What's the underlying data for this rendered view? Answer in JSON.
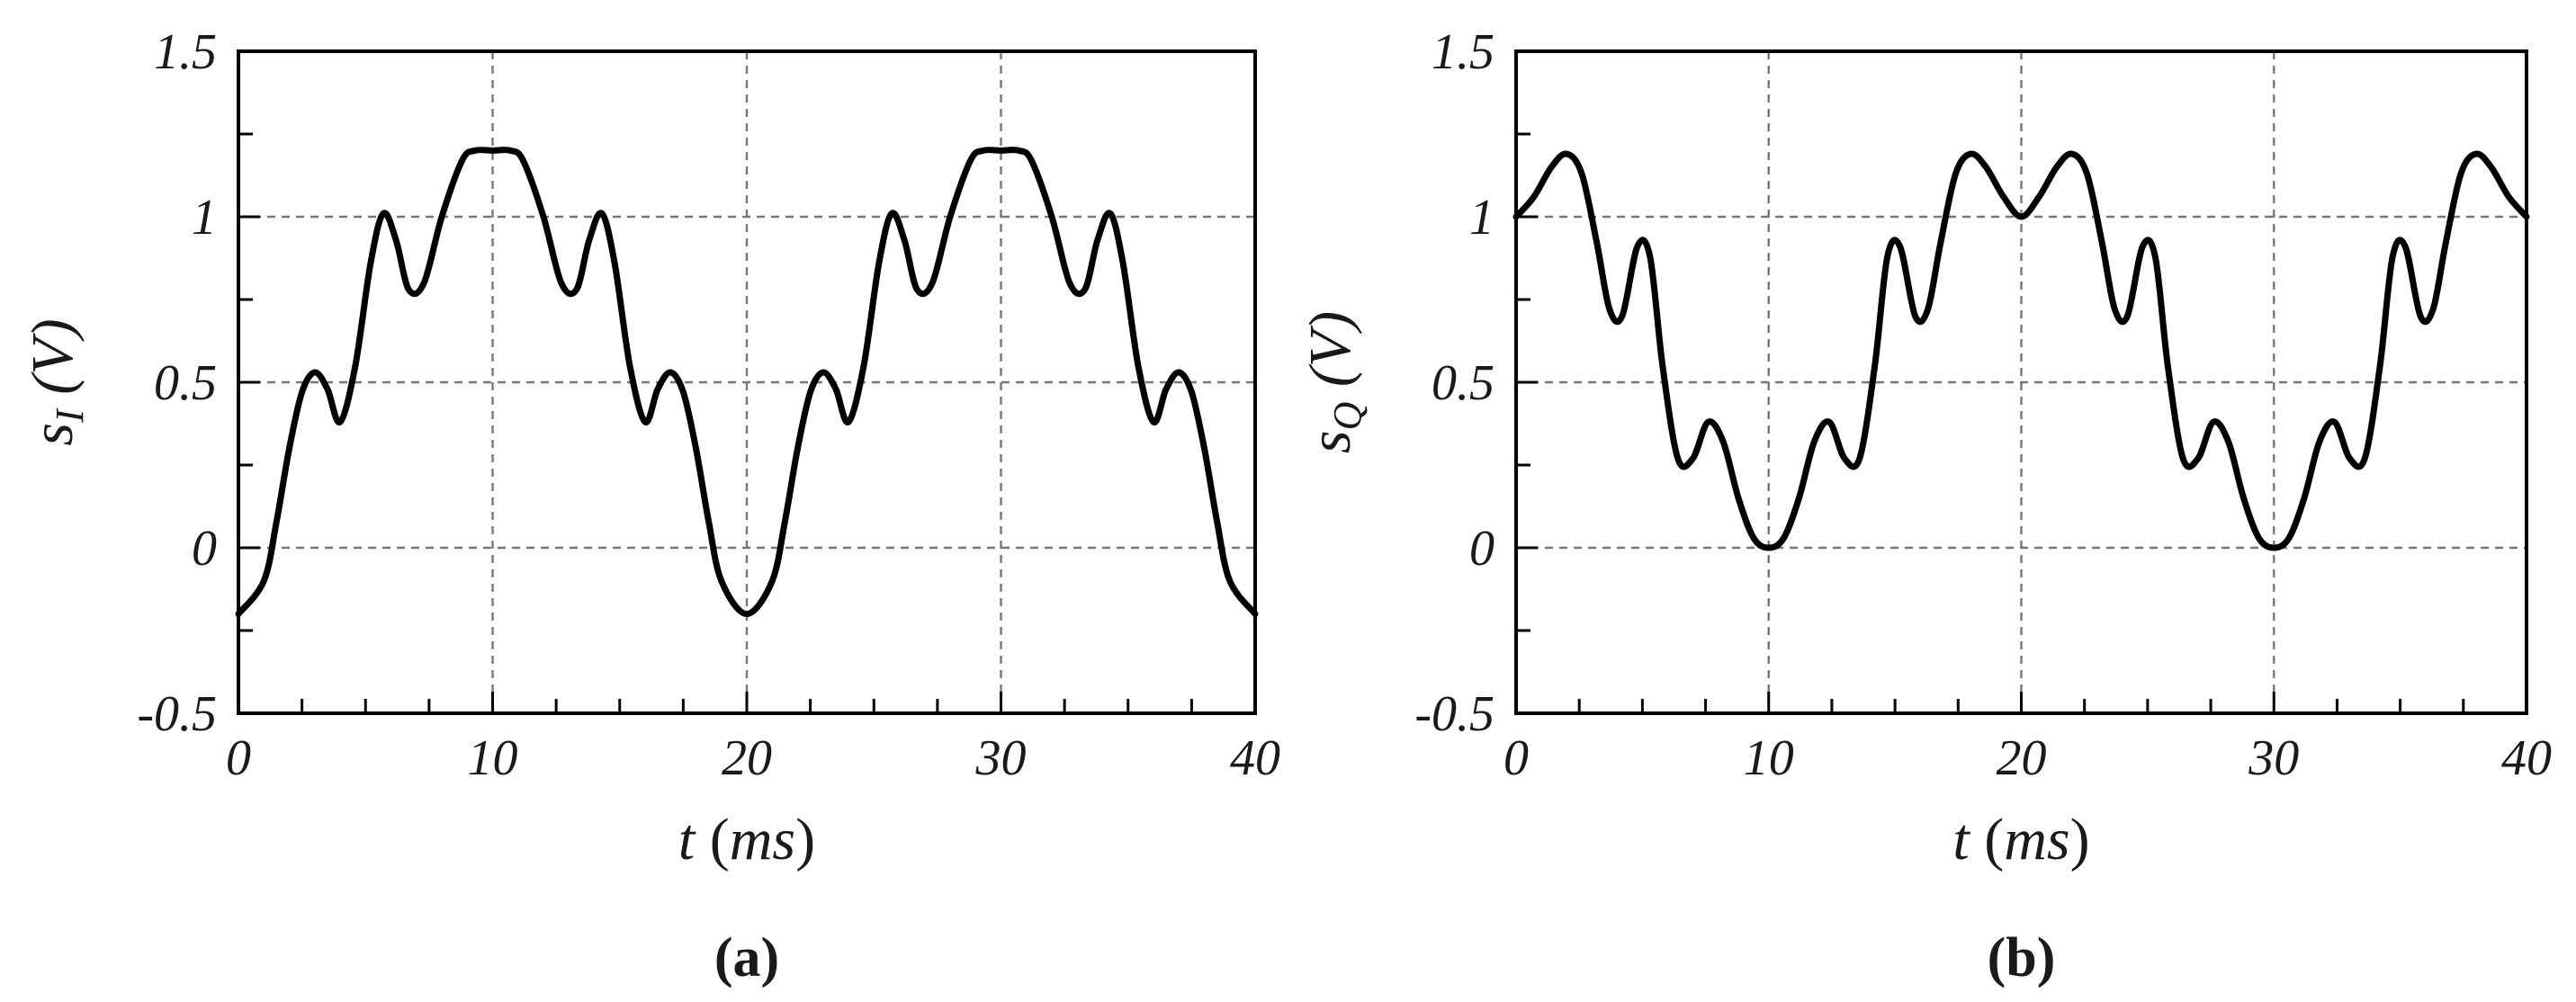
{
  "chart_data": [
    {
      "type": "line",
      "panel_label": "(a)",
      "xlabel": {
        "var": "t",
        "unit": "ms"
      },
      "ylabel": {
        "var": "s",
        "sub": "I",
        "unit": "V"
      },
      "xlim": [
        0,
        40
      ],
      "ylim": [
        -0.5,
        1.5
      ],
      "x_ticks": [
        0,
        10,
        20,
        30,
        40
      ],
      "x_tick_labels": [
        "0",
        "10",
        "20",
        "30",
        "40"
      ],
      "y_ticks": [
        -0.5,
        0,
        0.5,
        1,
        1.5
      ],
      "y_tick_labels": [
        "-0.5",
        "0",
        "0.5",
        "1",
        "1.5"
      ],
      "grid": true,
      "series": [
        {
          "color": "#000000",
          "x": [
            0,
            1,
            1.5,
            2,
            2.5,
            3,
            3.5,
            4,
            4.6,
            5.2,
            5.7,
            6.2,
            6.7,
            7.3,
            8,
            8.8,
            9.3,
            10,
            10.7,
            11.2,
            12,
            12.7,
            13.3,
            13.8,
            14.3,
            14.8,
            15.4,
            16,
            16.5,
            17,
            17.5,
            18,
            18.5,
            19,
            20,
            21,
            21.5,
            22,
            22.5,
            23,
            23.5,
            24,
            24.6,
            25.2,
            25.7,
            26.2,
            26.7,
            27.3,
            28,
            28.8,
            29.3,
            30,
            30.7,
            31.2,
            32,
            32.7,
            33.3,
            33.8,
            34.3,
            34.8,
            35.4,
            36,
            36.5,
            37,
            37.5,
            38,
            38.5,
            39,
            40
          ],
          "y": [
            -0.2,
            -0.1,
            0.08,
            0.3,
            0.47,
            0.53,
            0.48,
            0.38,
            0.55,
            0.86,
            1.01,
            0.93,
            0.78,
            0.8,
            1.0,
            1.17,
            1.2,
            1.2,
            1.2,
            1.17,
            1.0,
            0.8,
            0.78,
            0.93,
            1.01,
            0.86,
            0.55,
            0.38,
            0.48,
            0.53,
            0.47,
            0.3,
            0.08,
            -0.1,
            -0.2,
            -0.1,
            0.08,
            0.3,
            0.47,
            0.53,
            0.48,
            0.38,
            0.55,
            0.86,
            1.01,
            0.93,
            0.78,
            0.8,
            1.0,
            1.17,
            1.2,
            1.2,
            1.2,
            1.17,
            1.0,
            0.8,
            0.78,
            0.93,
            1.01,
            0.86,
            0.55,
            0.38,
            0.48,
            0.53,
            0.47,
            0.3,
            0.08,
            -0.1,
            -0.2
          ]
        }
      ]
    },
    {
      "type": "line",
      "panel_label": "(b)",
      "xlabel": {
        "var": "t",
        "unit": "ms"
      },
      "ylabel": {
        "var": "s",
        "sub": "Q",
        "unit": "V"
      },
      "xlim": [
        0,
        40
      ],
      "ylim": [
        -0.5,
        1.5
      ],
      "x_ticks": [
        0,
        10,
        20,
        30,
        40
      ],
      "x_tick_labels": [
        "0",
        "10",
        "20",
        "30",
        "40"
      ],
      "y_ticks": [
        -0.5,
        0,
        0.5,
        1,
        1.5
      ],
      "y_tick_labels": [
        "-0.5",
        "0",
        "0.5",
        "1",
        "1.5"
      ],
      "grid": true,
      "series": [
        {
          "color": "#000000",
          "x": [
            0,
            0.7,
            1.4,
            2,
            2.6,
            3.2,
            3.7,
            4.2,
            4.8,
            5.3,
            5.8,
            6.4,
            7,
            7.6,
            8.2,
            8.8,
            9.4,
            10,
            10.6,
            11.2,
            11.8,
            12.4,
            13,
            13.6,
            14.2,
            14.7,
            15.2,
            15.8,
            16.3,
            16.8,
            17.4,
            18,
            18.6,
            19.3,
            20,
            20.7,
            21.4,
            22,
            22.6,
            23.2,
            23.7,
            24.2,
            24.8,
            25.3,
            25.8,
            26.4,
            27,
            27.6,
            28.2,
            28.8,
            29.4,
            30,
            30.6,
            31.2,
            31.8,
            32.4,
            33,
            33.6,
            34.2,
            34.7,
            35.2,
            35.8,
            36.3,
            36.8,
            37.4,
            38,
            38.6,
            39.3,
            40
          ],
          "y": [
            1.0,
            1.06,
            1.15,
            1.19,
            1.13,
            0.92,
            0.72,
            0.7,
            0.91,
            0.88,
            0.55,
            0.27,
            0.27,
            0.38,
            0.32,
            0.15,
            0.03,
            0.0,
            0.03,
            0.15,
            0.32,
            0.38,
            0.27,
            0.27,
            0.55,
            0.88,
            0.91,
            0.7,
            0.72,
            0.92,
            1.13,
            1.19,
            1.15,
            1.06,
            1.0,
            1.06,
            1.15,
            1.19,
            1.13,
            0.92,
            0.72,
            0.7,
            0.91,
            0.88,
            0.55,
            0.27,
            0.27,
            0.38,
            0.32,
            0.15,
            0.03,
            0.0,
            0.03,
            0.15,
            0.32,
            0.38,
            0.27,
            0.27,
            0.55,
            0.88,
            0.91,
            0.7,
            0.72,
            0.92,
            1.13,
            1.19,
            1.15,
            1.06,
            1.0
          ]
        }
      ]
    }
  ]
}
